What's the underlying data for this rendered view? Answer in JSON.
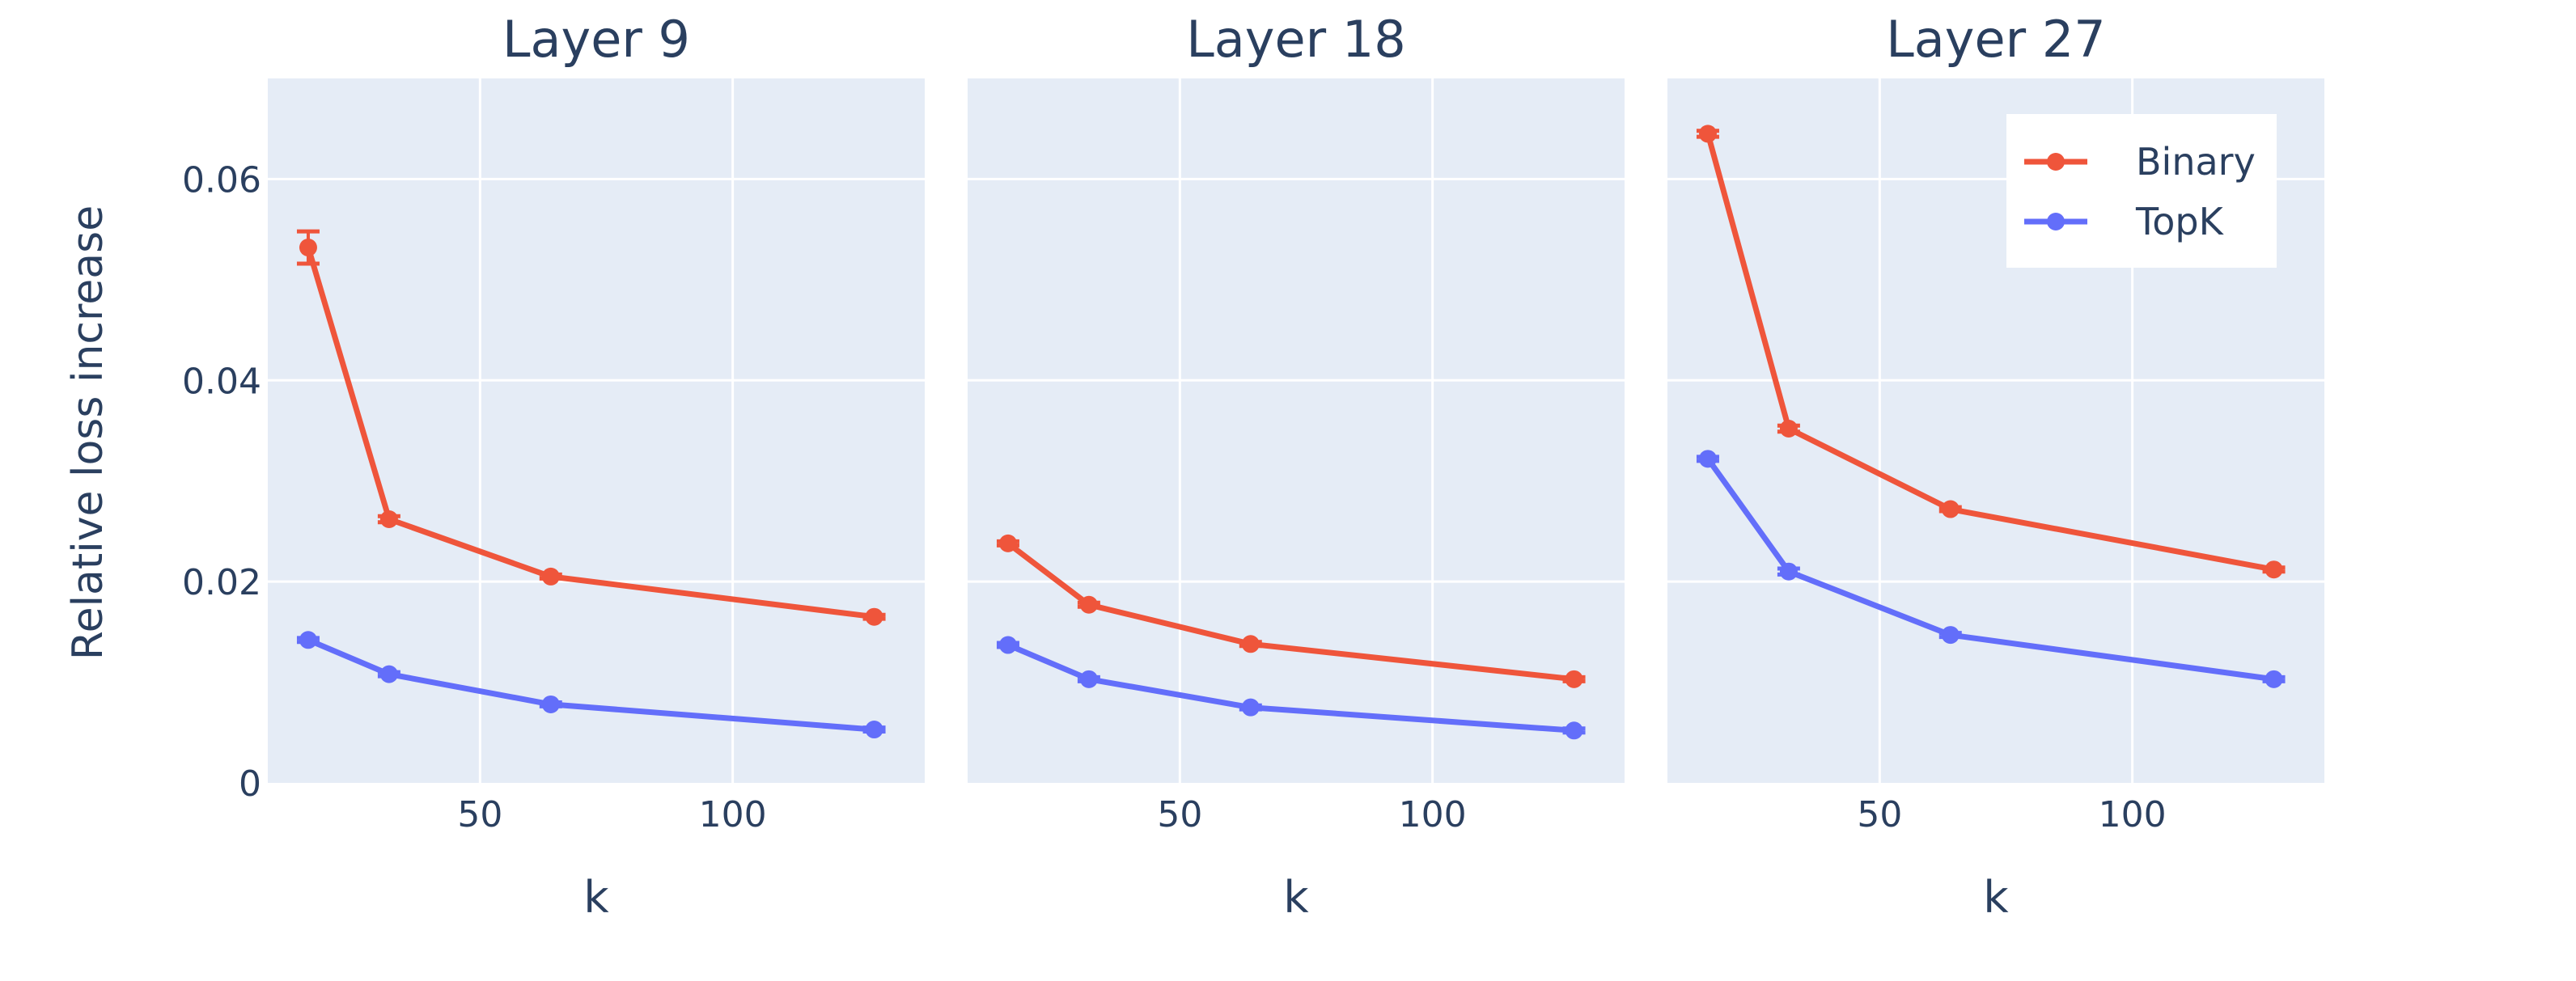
{
  "figure": {
    "ylabel": "Relative loss increase",
    "xlabel": "k",
    "colors": {
      "binary": "#ef553b",
      "topk": "#636efa",
      "plot_bg": "#e5ecf6",
      "grid": "#ffffff",
      "text": "#2a3f5f"
    }
  },
  "legend": {
    "placement": "top-right (inside Layer 27 panel)",
    "entries": [
      "Binary",
      "TopK"
    ]
  },
  "chart_data": [
    {
      "type": "line",
      "title": "Layer 9",
      "xlabel": "k",
      "ylabel": "Relative loss increase",
      "x": [
        16,
        32,
        64,
        128
      ],
      "xlim": [
        8,
        138
      ],
      "ylim": [
        0,
        0.07
      ],
      "xticks": [
        50,
        100
      ],
      "yticks": [
        0,
        0.02,
        0.04,
        0.06
      ],
      "ytick_labels": [
        "0",
        "0.02",
        "0.04",
        "0.06"
      ],
      "grid": true,
      "series": [
        {
          "name": "Binary",
          "values": [
            0.0532,
            0.0262,
            0.0205,
            0.0165
          ],
          "error": [
            0.0016,
            0.0003,
            0.0002,
            0.0002
          ]
        },
        {
          "name": "TopK",
          "values": [
            0.0142,
            0.0108,
            0.0078,
            0.0053
          ],
          "error": [
            0.0002,
            0.0002,
            0.0002,
            0.0002
          ]
        }
      ]
    },
    {
      "type": "line",
      "title": "Layer 18",
      "xlabel": "k",
      "x": [
        16,
        32,
        64,
        128
      ],
      "xlim": [
        8,
        138
      ],
      "ylim": [
        0,
        0.07
      ],
      "xticks": [
        50,
        100
      ],
      "grid": true,
      "series": [
        {
          "name": "Binary",
          "values": [
            0.0238,
            0.0177,
            0.0138,
            0.0103
          ],
          "error": [
            0.0002,
            0.0002,
            0.0002,
            0.0002
          ]
        },
        {
          "name": "TopK",
          "values": [
            0.0137,
            0.0103,
            0.0075,
            0.0052
          ],
          "error": [
            0.0002,
            0.0002,
            0.0002,
            0.0002
          ]
        }
      ]
    },
    {
      "type": "line",
      "title": "Layer 27",
      "xlabel": "k",
      "x": [
        16,
        32,
        64,
        128
      ],
      "xlim": [
        8,
        138
      ],
      "ylim": [
        0,
        0.07
      ],
      "xticks": [
        50,
        100
      ],
      "grid": true,
      "series": [
        {
          "name": "Binary",
          "values": [
            0.0645,
            0.0352,
            0.0272,
            0.0212
          ],
          "error": [
            0.0003,
            0.0003,
            0.0002,
            0.0002
          ]
        },
        {
          "name": "TopK",
          "values": [
            0.0322,
            0.021,
            0.0147,
            0.0103
          ],
          "error": [
            0.0002,
            0.0003,
            0.0002,
            0.0002
          ]
        }
      ]
    }
  ]
}
